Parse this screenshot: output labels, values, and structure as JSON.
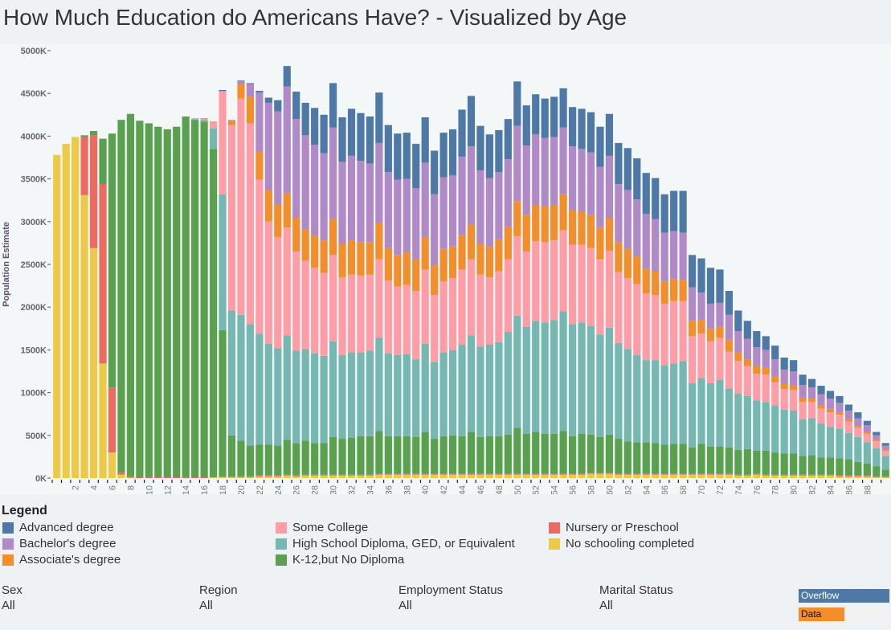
{
  "title": "How Much Education do Americans Have? - Visualized by Age",
  "legend": {
    "title": "Legend",
    "items": [
      {
        "label": "Advanced degree",
        "color": "#4e79a7"
      },
      {
        "label": "Bachelor's degree",
        "color": "#af8ac7"
      },
      {
        "label": "Associate's degree",
        "color": "#f28e2b"
      },
      {
        "label": "Some College",
        "color": "#ff9da7"
      },
      {
        "label": "High School Diploma, GED, or Equivalent",
        "color": "#76b7b2"
      },
      {
        "label": "K-12,but No Diploma",
        "color": "#59a14f"
      },
      {
        "label": "Nursery or Preschool",
        "color": "#ec6a5f"
      },
      {
        "label": "No schooling completed",
        "color": "#edc948"
      }
    ]
  },
  "filters": [
    {
      "label": "Sex",
      "value": "All"
    },
    {
      "label": "Region",
      "value": "All"
    },
    {
      "label": "Employment Status",
      "value": "All"
    },
    {
      "label": "Marital Status",
      "value": "All"
    }
  ],
  "buttons": {
    "overflow": "Overflow",
    "data": "Data"
  },
  "chart_data": {
    "type": "bar",
    "stacked": true,
    "xlabel": "",
    "ylabel": "Population Estimate",
    "ylim": [
      0,
      5000
    ],
    "y_unit_suffix": "K",
    "y_ticks": [
      "0K",
      "500K",
      "1000K",
      "1500K",
      "2000K",
      "2500K",
      "3000K",
      "3500K",
      "4000K",
      "4500K",
      "5000K"
    ],
    "x_ticks_shown": "even ages 2 to 88",
    "categories": [
      0,
      1,
      2,
      3,
      4,
      5,
      6,
      7,
      8,
      9,
      10,
      11,
      12,
      13,
      14,
      15,
      16,
      17,
      18,
      19,
      20,
      21,
      22,
      23,
      24,
      25,
      26,
      27,
      28,
      29,
      30,
      31,
      32,
      33,
      34,
      35,
      36,
      37,
      38,
      39,
      40,
      41,
      42,
      43,
      44,
      45,
      46,
      47,
      48,
      49,
      50,
      51,
      52,
      53,
      54,
      55,
      56,
      57,
      58,
      59,
      60,
      61,
      62,
      63,
      64,
      65,
      66,
      67,
      68,
      69,
      70,
      71,
      72,
      73,
      74,
      75,
      76,
      77,
      78,
      79,
      80,
      81,
      82,
      83,
      84,
      85,
      86,
      87,
      88,
      89,
      90
    ],
    "series": [
      {
        "name": "No schooling completed",
        "color": "#edc948",
        "values": [
          3780,
          3910,
          3990,
          3310,
          2690,
          1340,
          300,
          40,
          5,
          0,
          0,
          0,
          0,
          0,
          0,
          0,
          0,
          10,
          10,
          10,
          10,
          10,
          20,
          20,
          20,
          30,
          20,
          30,
          30,
          30,
          30,
          30,
          30,
          30,
          30,
          40,
          40,
          40,
          40,
          40,
          40,
          40,
          40,
          40,
          40,
          40,
          40,
          40,
          40,
          40,
          40,
          40,
          40,
          40,
          40,
          40,
          40,
          40,
          50,
          50,
          50,
          40,
          40,
          40,
          40,
          40,
          40,
          40,
          40,
          40,
          40,
          40,
          40,
          40,
          30,
          30,
          40,
          30,
          30,
          30,
          30,
          30,
          30,
          30,
          30,
          20,
          20,
          20,
          20,
          10,
          10
        ]
      },
      {
        "name": "Nursery or Preschool",
        "color": "#ec6a5f",
        "values": [
          0,
          0,
          0,
          680,
          1320,
          2100,
          760,
          30,
          15,
          10,
          10,
          10,
          10,
          10,
          10,
          10,
          10,
          0,
          10,
          10,
          10,
          10,
          10,
          10,
          10,
          10,
          10,
          10,
          10,
          10,
          10,
          10,
          10,
          10,
          10,
          10,
          10,
          10,
          10,
          10,
          10,
          10,
          10,
          10,
          10,
          10,
          10,
          10,
          10,
          10,
          10,
          10,
          10,
          10,
          10,
          10,
          10,
          10,
          10,
          10,
          10,
          10,
          10,
          10,
          10,
          10,
          10,
          10,
          10,
          10,
          10,
          10,
          10,
          10,
          10,
          10,
          10,
          10,
          10,
          10,
          10,
          10,
          10,
          10,
          10,
          10,
          10,
          10,
          10,
          10,
          10
        ]
      },
      {
        "name": "K-12,but No Diploma",
        "color": "#59a14f",
        "values": [
          0,
          0,
          0,
          20,
          50,
          530,
          2970,
          4120,
          4240,
          4170,
          4140,
          4100,
          4070,
          4100,
          4220,
          4180,
          4160,
          3840,
          1710,
          480,
          420,
          360,
          360,
          360,
          350,
          410,
          380,
          400,
          370,
          370,
          440,
          420,
          430,
          450,
          450,
          500,
          440,
          440,
          440,
          430,
          490,
          410,
          440,
          450,
          440,
          490,
          430,
          440,
          440,
          460,
          540,
          470,
          490,
          470,
          470,
          500,
          440,
          470,
          450,
          420,
          450,
          410,
          380,
          370,
          370,
          360,
          340,
          350,
          350,
          310,
          350,
          320,
          320,
          310,
          290,
          300,
          270,
          280,
          260,
          250,
          250,
          220,
          230,
          200,
          200,
          200,
          190,
          160,
          140,
          120,
          80
        ]
      },
      {
        "name": "High School Diploma, GED, or Equivalent",
        "color": "#76b7b2",
        "values": [
          0,
          0,
          0,
          0,
          0,
          0,
          0,
          0,
          0,
          0,
          0,
          0,
          0,
          0,
          0,
          10,
          20,
          240,
          1590,
          1460,
          1470,
          1420,
          1300,
          1180,
          1140,
          1220,
          1080,
          1070,
          1050,
          1020,
          1120,
          980,
          1000,
          980,
          1000,
          1090,
          970,
          950,
          960,
          910,
          1030,
          900,
          980,
          1000,
          1070,
          1130,
          1060,
          1070,
          1100,
          1200,
          1310,
          1250,
          1300,
          1300,
          1330,
          1400,
          1310,
          1300,
          1270,
          1200,
          1250,
          1120,
          1080,
          1020,
          960,
          970,
          930,
          940,
          970,
          750,
          770,
          740,
          780,
          690,
          660,
          620,
          590,
          570,
          550,
          510,
          500,
          430,
          430,
          400,
          360,
          350,
          310,
          290,
          250,
          210,
          160
        ]
      },
      {
        "name": "Some College",
        "color": "#ff9da7",
        "values": [
          0,
          0,
          0,
          0,
          0,
          0,
          0,
          0,
          0,
          0,
          0,
          0,
          0,
          0,
          0,
          10,
          10,
          70,
          1200,
          2170,
          2530,
          2350,
          1800,
          1430,
          1300,
          1260,
          1160,
          1030,
          1000,
          970,
          1010,
          910,
          910,
          900,
          890,
          920,
          850,
          800,
          810,
          800,
          870,
          780,
          830,
          840,
          880,
          890,
          840,
          790,
          830,
          850,
          930,
          880,
          930,
          940,
          930,
          950,
          930,
          910,
          910,
          880,
          900,
          830,
          830,
          830,
          780,
          760,
          720,
          730,
          700,
          550,
          520,
          490,
          490,
          430,
          380,
          350,
          310,
          320,
          270,
          240,
          240,
          200,
          190,
          170,
          170,
          160,
          130,
          110,
          100,
          80,
          60
        ]
      },
      {
        "name": "Associate's degree",
        "color": "#f28e2b",
        "values": [
          0,
          0,
          0,
          0,
          0,
          0,
          0,
          0,
          0,
          0,
          0,
          0,
          0,
          0,
          0,
          0,
          10,
          10,
          10,
          50,
          170,
          310,
          330,
          370,
          380,
          400,
          390,
          370,
          370,
          380,
          420,
          390,
          400,
          390,
          380,
          420,
          380,
          370,
          380,
          370,
          380,
          350,
          380,
          370,
          400,
          410,
          360,
          360,
          370,
          380,
          410,
          430,
          420,
          420,
          410,
          420,
          400,
          390,
          390,
          370,
          380,
          350,
          340,
          320,
          290,
          280,
          260,
          260,
          250,
          180,
          160,
          150,
          130,
          140,
          100,
          80,
          90,
          80,
          70,
          60,
          60,
          50,
          40,
          40,
          40,
          30,
          30,
          20,
          20,
          20,
          10
        ]
      },
      {
        "name": "Bachelor's degree",
        "color": "#af8ac7",
        "values": [
          0,
          0,
          0,
          0,
          0,
          0,
          0,
          0,
          0,
          0,
          0,
          0,
          0,
          0,
          0,
          0,
          0,
          0,
          0,
          10,
          30,
          150,
          690,
          1020,
          1090,
          1250,
          1160,
          1100,
          1070,
          1020,
          1070,
          960,
          990,
          950,
          920,
          940,
          890,
          880,
          860,
          830,
          870,
          830,
          840,
          830,
          920,
          910,
          860,
          800,
          790,
          790,
          880,
          810,
          830,
          800,
          800,
          780,
          750,
          730,
          730,
          710,
          730,
          680,
          690,
          670,
          640,
          610,
          570,
          560,
          550,
          390,
          320,
          290,
          280,
          290,
          250,
          240,
          220,
          210,
          200,
          170,
          160,
          150,
          130,
          130,
          120,
          110,
          100,
          90,
          80,
          50,
          50
        ]
      },
      {
        "name": "Advanced degree",
        "color": "#4e79a7",
        "values": [
          0,
          0,
          0,
          0,
          0,
          0,
          0,
          0,
          0,
          0,
          0,
          0,
          0,
          0,
          0,
          0,
          0,
          0,
          10,
          0,
          10,
          10,
          20,
          60,
          130,
          240,
          320,
          380,
          430,
          450,
          520,
          520,
          550,
          560,
          550,
          590,
          550,
          540,
          540,
          520,
          530,
          510,
          520,
          540,
          550,
          590,
          520,
          510,
          490,
          470,
          520,
          470,
          470,
          460,
          470,
          460,
          460,
          470,
          470,
          470,
          490,
          480,
          490,
          480,
          480,
          480,
          450,
          470,
          490,
          380,
          400,
          420,
          390,
          280,
          240,
          210,
          190,
          160,
          160,
          140,
          130,
          120,
          100,
          100,
          90,
          80,
          70,
          70,
          50,
          40,
          30
        ]
      }
    ]
  }
}
